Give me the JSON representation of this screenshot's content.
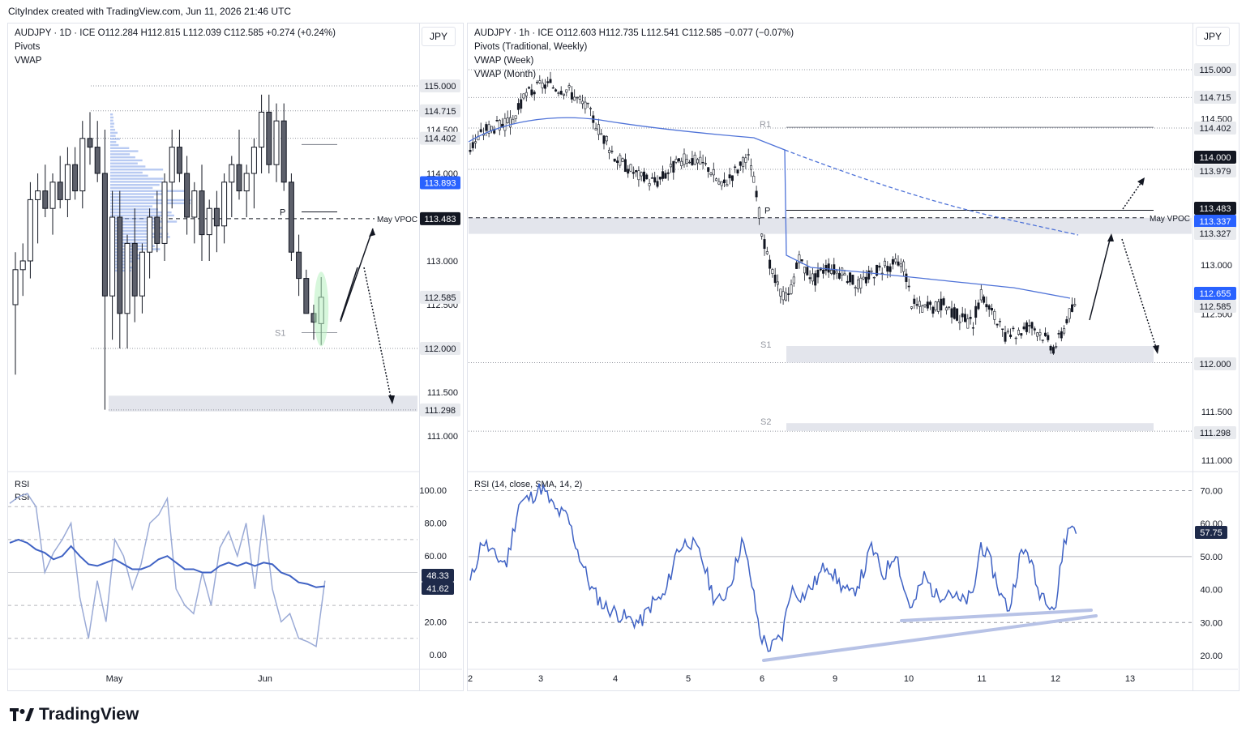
{
  "top": {
    "created": "CityIndex created with TradingView.com, Jun 11, 2026 21:46 UTC"
  },
  "brand": {
    "name": "TradingView"
  },
  "left": {
    "currency": "JPY",
    "header": [
      "AUDJPY · 1D · ICE   O112.284  H112.815  L112.039  C112.585  +0.274 (+0.24%)",
      "Pivots",
      "VWAP"
    ],
    "price_ticks": [
      "111.000",
      "111.500",
      "112.000",
      "112.500",
      "113.000",
      "114.000",
      "114.500"
    ],
    "price_boxes": [
      {
        "label": "115.000",
        "y": 115.0,
        "dark": false
      },
      {
        "label": "114.715",
        "y": 114.715,
        "dark": false
      },
      {
        "label": "114.402",
        "y": 114.402,
        "dark": false
      },
      {
        "label": "113.893",
        "y": 113.893,
        "blue": true
      },
      {
        "label": "113.483",
        "y": 113.483,
        "dark": true
      },
      {
        "label": "112.585",
        "y": 112.585,
        "dark": false
      },
      {
        "label": "112.000",
        "y": 112.0,
        "dark": false
      },
      {
        "label": "111.298",
        "y": 111.298,
        "dark": false
      }
    ],
    "annotations": {
      "vpoc": "May VPOC",
      "p": "P",
      "s1": "S1"
    },
    "xticks": [
      "May",
      "Jun"
    ],
    "rsi": {
      "title": "RSI",
      "title2": "RSI",
      "ticks": [
        "0.00",
        "20.00",
        "40.00",
        "60.00",
        "80.00",
        "100.00"
      ],
      "boxes": [
        {
          "label": "48.33",
          "y": 48.33
        },
        {
          "label": "41.62",
          "y": 41.62
        }
      ]
    }
  },
  "right": {
    "currency": "JPY",
    "header": [
      "AUDJPY · 1h · ICE   O112.603  H112.735  L112.541  C112.585  −0.077 (−0.07%)",
      "Pivots (Traditional, Weekly)",
      "VWAP (Week)",
      "VWAP (Month)"
    ],
    "price_ticks": [
      "111.000",
      "111.500",
      "112.500",
      "113.000",
      "114.500"
    ],
    "price_boxes": [
      {
        "label": "115.000",
        "y": 115.0,
        "dark": false
      },
      {
        "label": "114.715",
        "y": 114.715,
        "dark": false
      },
      {
        "label": "114.402",
        "y": 114.402,
        "dark": false
      },
      {
        "label": "114.000",
        "y": 114.0,
        "dark": true
      },
      {
        "label": "113.979",
        "y": 113.979,
        "dark": false
      },
      {
        "label": "113.483",
        "y": 113.483,
        "dark": true
      },
      {
        "label": "113.337",
        "y": 113.337,
        "blue": true
      },
      {
        "label": "113.327",
        "y": 113.327,
        "dark": false
      },
      {
        "label": "112.655",
        "y": 112.655,
        "blue": true
      },
      {
        "label": "112.585",
        "y": 112.585,
        "dark": false
      },
      {
        "label": "112.000",
        "y": 112.0,
        "dark": false
      },
      {
        "label": "111.298",
        "y": 111.298,
        "dark": false
      }
    ],
    "annotations": {
      "vpoc": "May VPOC",
      "p": "P",
      "r1": "R1",
      "s1": "S1",
      "s2": "S2"
    },
    "xticks": [
      "2",
      "3",
      "4",
      "5",
      "6",
      "9",
      "10",
      "11",
      "12",
      "13"
    ],
    "rsi": {
      "title": "RSI (14, close, SMA, 14, 2)",
      "ticks": [
        "20.00",
        "30.00",
        "40.00",
        "50.00",
        "60.00",
        "70.00"
      ],
      "boxes": [
        {
          "label": "57.75",
          "y": 57.75
        }
      ]
    }
  },
  "chart_data": [
    {
      "type": "candlestick",
      "title": "AUDJPY · 1D · ICE",
      "ylim": [
        110.8,
        115.6
      ],
      "x": [
        "May",
        "Jun"
      ],
      "last_close": 112.585,
      "ohlc_summary": {
        "open": 112.284,
        "high": 112.815,
        "low": 112.039,
        "close": 112.585
      },
      "levels": {
        "P": 113.483,
        "S1": 112.2,
        "May VPOC": 113.483,
        "VWAP": 113.893
      },
      "rsi_series_estimate": [
        68,
        72,
        66,
        62,
        58,
        55,
        60,
        50,
        45,
        40,
        38,
        35,
        42,
        48,
        50,
        52,
        48,
        45,
        47,
        50,
        46,
        44,
        48,
        42,
        41.62
      ]
    },
    {
      "type": "candlestick",
      "title": "AUDJPY · 1h · ICE",
      "ylim": [
        110.9,
        115.3
      ],
      "x": [
        "2",
        "3",
        "4",
        "5",
        "6",
        "9",
        "10",
        "11",
        "12",
        "13"
      ],
      "last_close": 112.585,
      "ohlc_summary": {
        "open": 112.603,
        "high": 112.735,
        "low": 112.541,
        "close": 112.585
      },
      "levels": {
        "R1": 114.402,
        "P": 113.483,
        "S1": 112.1,
        "S2": 111.35,
        "VWAP Week": 112.655,
        "VWAP Month": 113.337
      },
      "rsi_last": 57.75
    }
  ]
}
